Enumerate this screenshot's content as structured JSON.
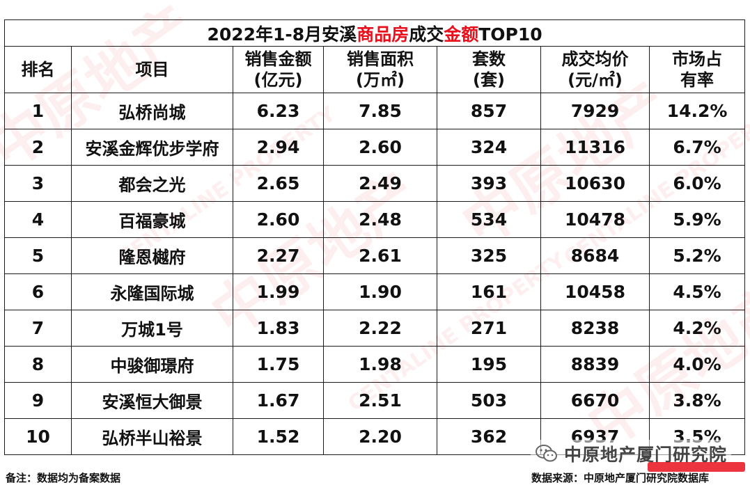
{
  "title": {
    "prefix": "2022年1-8月安溪",
    "red1": "商品房",
    "mid": "成交",
    "red2": "金额",
    "suffix": "TOP10"
  },
  "headers": [
    [
      "排名"
    ],
    [
      "项目"
    ],
    [
      "销售金额",
      "(亿元)"
    ],
    [
      "销售面积",
      "(万㎡)"
    ],
    [
      "套数",
      "(套)"
    ],
    [
      "成交均价",
      "(元/㎡)"
    ],
    [
      "市场占",
      "有率"
    ]
  ],
  "rows": [
    [
      "1",
      "弘桥尚城",
      "6.23",
      "7.85",
      "857",
      "7929",
      "14.2%"
    ],
    [
      "2",
      "安溪金辉优步学府",
      "2.94",
      "2.60",
      "324",
      "11316",
      "6.7%"
    ],
    [
      "3",
      "都会之光",
      "2.65",
      "2.49",
      "393",
      "10630",
      "6.0%"
    ],
    [
      "4",
      "百福豪城",
      "2.60",
      "2.48",
      "534",
      "10478",
      "5.9%"
    ],
    [
      "5",
      "隆恩樾府",
      "2.27",
      "2.61",
      "325",
      "8684",
      "5.2%"
    ],
    [
      "6",
      "永隆国际城",
      "1.99",
      "1.90",
      "161",
      "10458",
      "4.5%"
    ],
    [
      "7",
      "万城1号",
      "1.83",
      "2.22",
      "271",
      "8238",
      "4.2%"
    ],
    [
      "8",
      "中骏御璟府",
      "1.75",
      "1.98",
      "195",
      "8839",
      "4.0%"
    ],
    [
      "9",
      "安溪恒大御景",
      "1.67",
      "2.51",
      "503",
      "6670",
      "3.8%"
    ],
    [
      "10",
      "弘桥半山裕景",
      "1.52",
      "2.20",
      "362",
      "6937",
      "3.5%"
    ]
  ],
  "footer": {
    "note": "备注：数据均为备案数据",
    "source": "数据来源：中原地产厦门研究院数据库"
  },
  "watermark": {
    "account": "中原地产厦门研究院",
    "icon": "wechat-icon",
    "brand_text": "中原地产",
    "brand_en": "CENTALINE PROPERTY"
  },
  "colors": {
    "highlight_red": "#e8101c",
    "watermark_red": "#e62129"
  }
}
